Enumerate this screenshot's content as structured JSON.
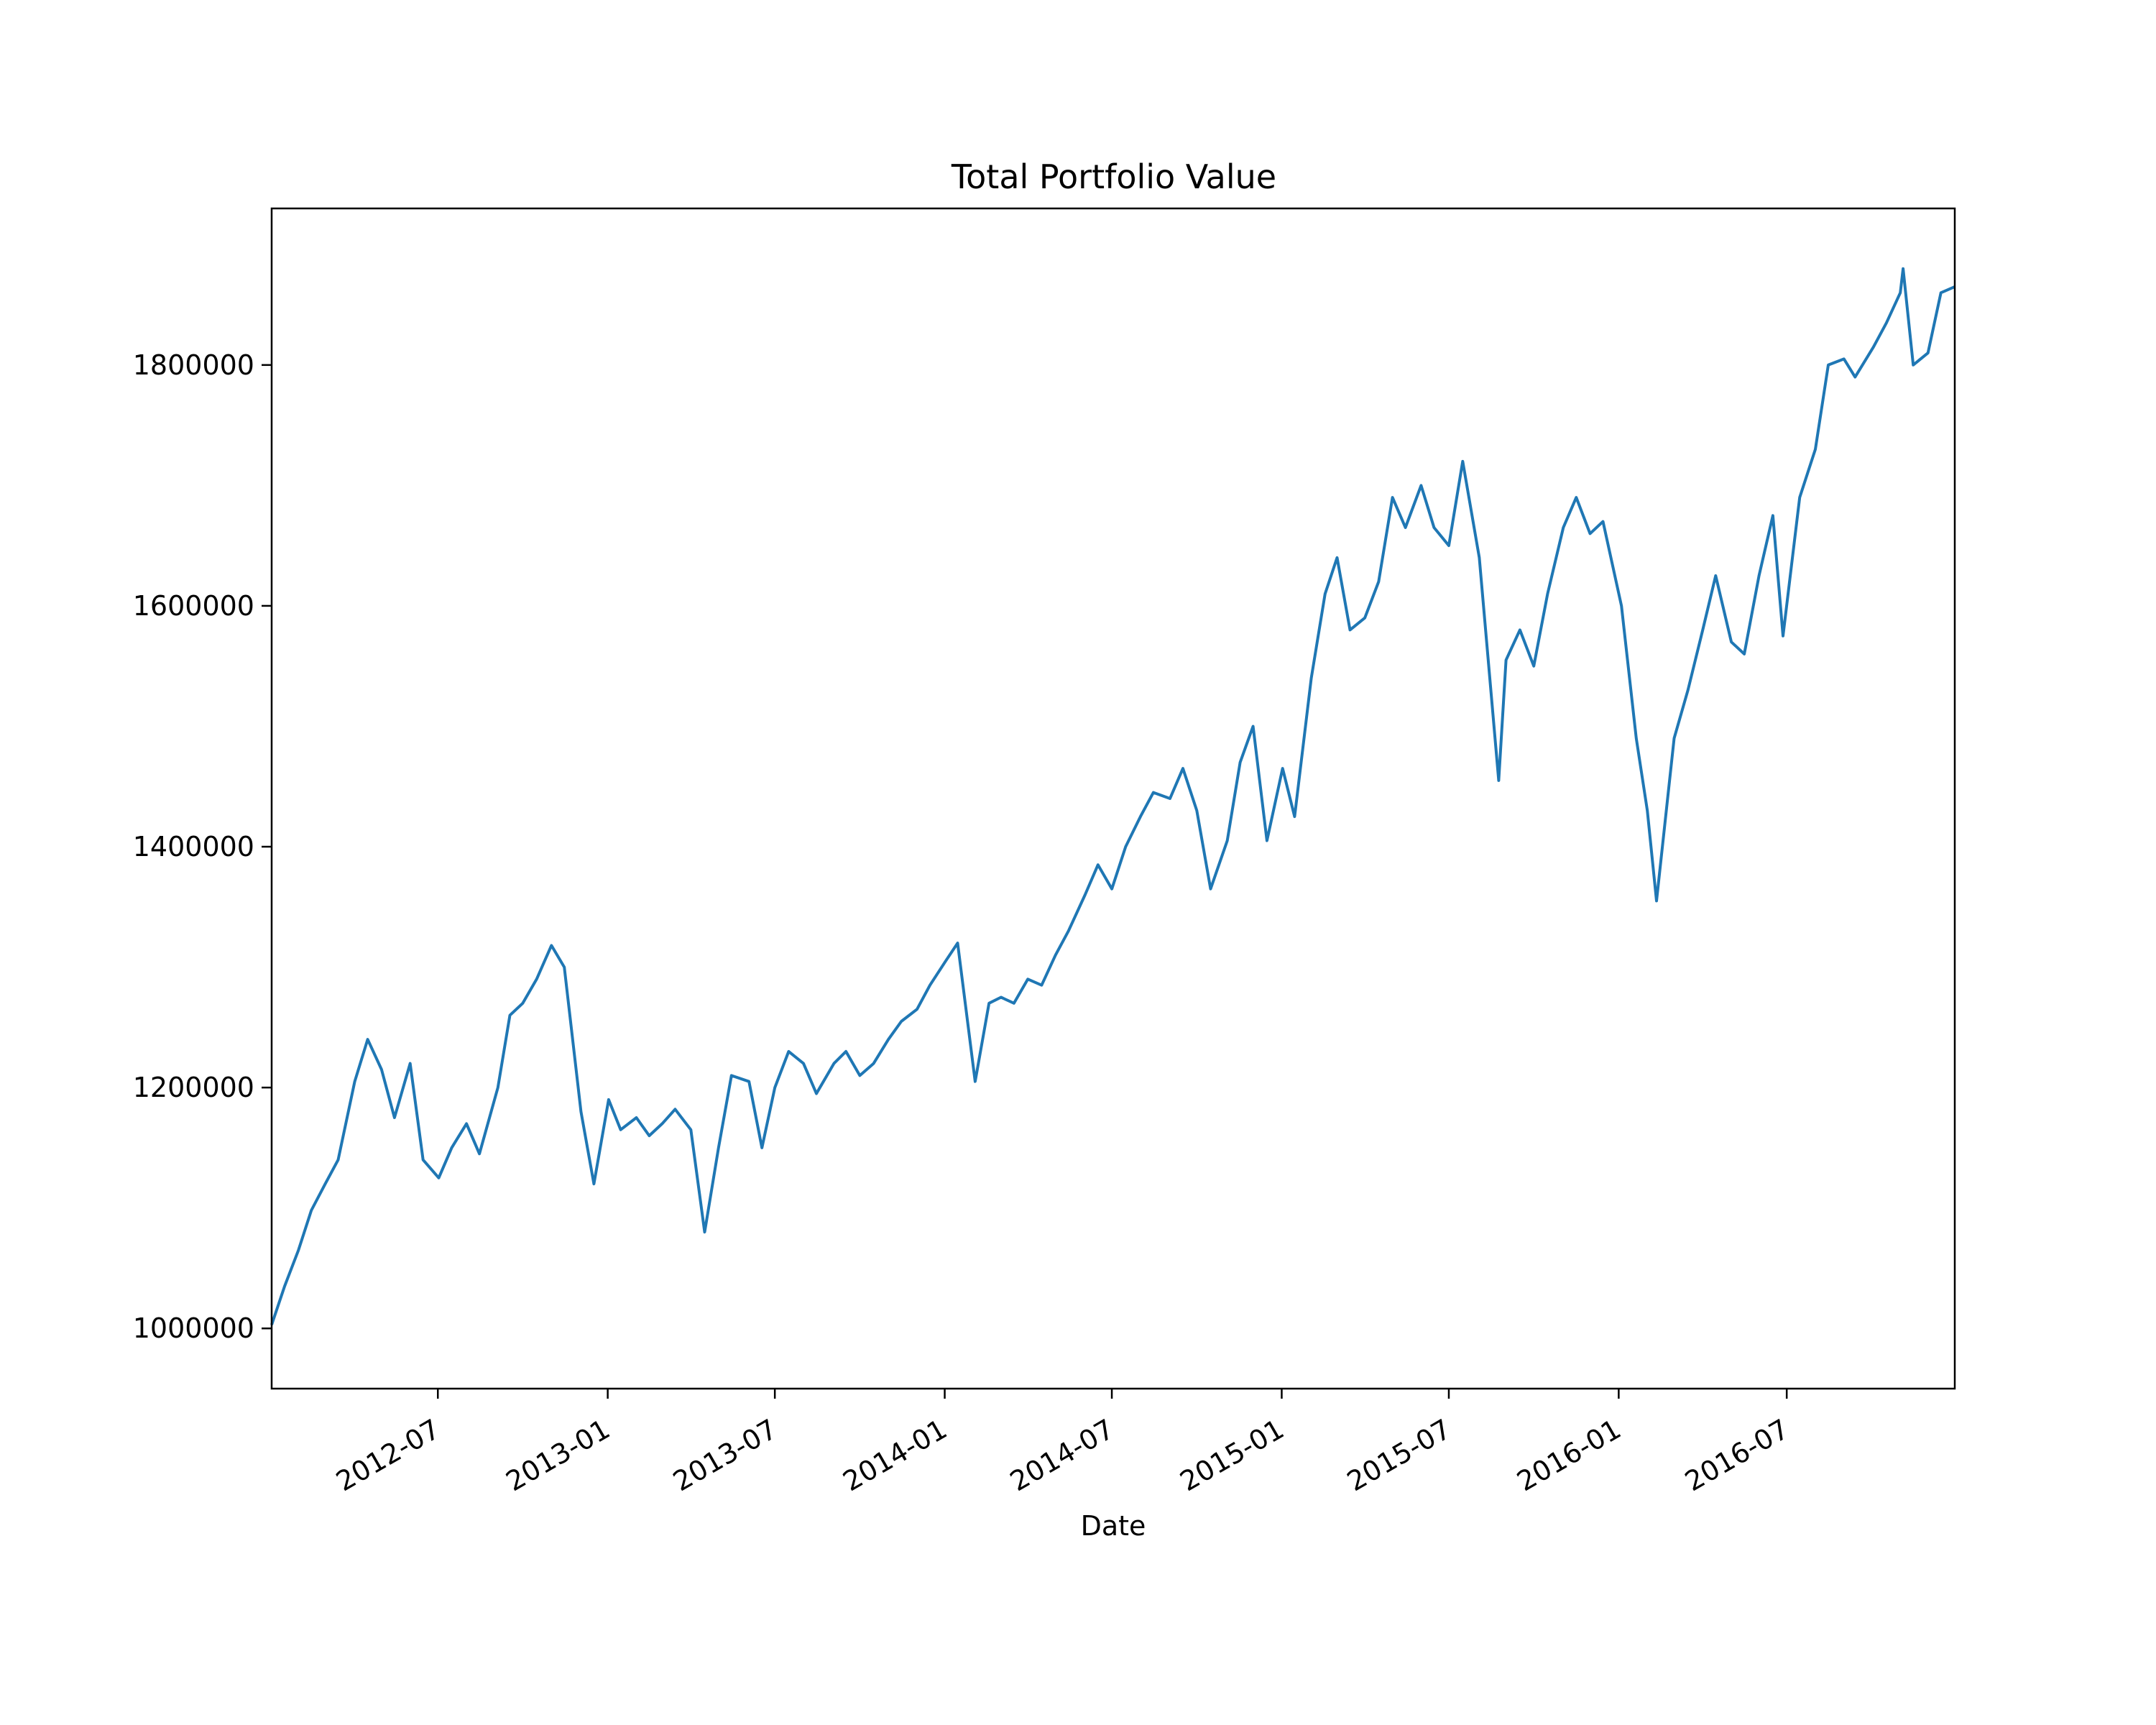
{
  "chart_data": {
    "type": "line",
    "title": "Total Portfolio Value",
    "xlabel": "Date",
    "ylabel": "",
    "x_range": [
      "2012-01-03",
      "2016-12-30"
    ],
    "ylim": [
      950000,
      1930000
    ],
    "grid": false,
    "legend": "none",
    "line_color": "#1f77b4",
    "x_ticks": [
      {
        "date": "2012-07-01",
        "label": "2012-07"
      },
      {
        "date": "2013-01-01",
        "label": "2013-01"
      },
      {
        "date": "2013-07-01",
        "label": "2013-07"
      },
      {
        "date": "2014-01-01",
        "label": "2014-01"
      },
      {
        "date": "2014-07-01",
        "label": "2014-07"
      },
      {
        "date": "2015-01-01",
        "label": "2015-01"
      },
      {
        "date": "2015-07-01",
        "label": "2015-07"
      },
      {
        "date": "2016-01-01",
        "label": "2016-01"
      },
      {
        "date": "2016-07-01",
        "label": "2016-07"
      }
    ],
    "y_ticks": [
      {
        "value": 1000000,
        "label": "1000000"
      },
      {
        "value": 1200000,
        "label": "1200000"
      },
      {
        "value": 1400000,
        "label": "1400000"
      },
      {
        "value": 1600000,
        "label": "1600000"
      },
      {
        "value": 1800000,
        "label": "1800000"
      }
    ],
    "series": [
      {
        "x": [
          "2012-01-03",
          "2012-01-17",
          "2012-02-01",
          "2012-02-15",
          "2012-03-01",
          "2012-03-15",
          "2012-04-02",
          "2012-04-16",
          "2012-05-01",
          "2012-05-15",
          "2012-06-01",
          "2012-06-15",
          "2012-07-02",
          "2012-07-16",
          "2012-08-01",
          "2012-08-15",
          "2012-09-04",
          "2012-09-17",
          "2012-10-01",
          "2012-10-16",
          "2012-11-01",
          "2012-11-15",
          "2012-12-03",
          "2012-12-17",
          "2013-01-02",
          "2013-01-15",
          "2013-02-01",
          "2013-02-15",
          "2013-03-01",
          "2013-03-15",
          "2013-04-01",
          "2013-04-16",
          "2013-05-01",
          "2013-05-15",
          "2013-06-03",
          "2013-06-17",
          "2013-07-01",
          "2013-07-16",
          "2013-08-01",
          "2013-08-15",
          "2013-09-03",
          "2013-09-16",
          "2013-10-01",
          "2013-10-16",
          "2013-11-01",
          "2013-11-15",
          "2013-12-02",
          "2013-12-16",
          "2014-01-02",
          "2014-01-15",
          "2014-02-03",
          "2014-02-18",
          "2014-03-03",
          "2014-03-17",
          "2014-04-01",
          "2014-04-16",
          "2014-05-01",
          "2014-05-15",
          "2014-06-02",
          "2014-06-16",
          "2014-07-01",
          "2014-07-16",
          "2014-08-01",
          "2014-08-15",
          "2014-09-02",
          "2014-09-16",
          "2014-10-01",
          "2014-10-16",
          "2014-11-03",
          "2014-11-17",
          "2014-12-01",
          "2014-12-16",
          "2015-01-02",
          "2015-01-15",
          "2015-02-02",
          "2015-02-17",
          "2015-03-02",
          "2015-03-16",
          "2015-04-01",
          "2015-04-16",
          "2015-05-01",
          "2015-05-15",
          "2015-06-01",
          "2015-06-15",
          "2015-07-01",
          "2015-07-16",
          "2015-08-03",
          "2015-08-24",
          "2015-09-01",
          "2015-09-16",
          "2015-10-01",
          "2015-10-16",
          "2015-11-02",
          "2015-11-16",
          "2015-12-01",
          "2015-12-15",
          "2016-01-04",
          "2016-01-20",
          "2016-02-01",
          "2016-02-11",
          "2016-03-01",
          "2016-03-16",
          "2016-04-01",
          "2016-04-15",
          "2016-05-02",
          "2016-05-16",
          "2016-06-01",
          "2016-06-16",
          "2016-06-27",
          "2016-07-15",
          "2016-08-01",
          "2016-08-15",
          "2016-09-01",
          "2016-09-13",
          "2016-10-03",
          "2016-10-17",
          "2016-11-01",
          "2016-11-04",
          "2016-11-15",
          "2016-12-01",
          "2016-12-15",
          "2016-12-30"
        ],
        "y": [
          1003000,
          1035000,
          1065000,
          1098000,
          1120000,
          1140000,
          1205000,
          1240000,
          1215000,
          1175000,
          1220000,
          1140000,
          1125000,
          1150000,
          1170000,
          1145000,
          1200000,
          1260000,
          1270000,
          1290000,
          1318000,
          1300000,
          1180000,
          1120000,
          1190000,
          1165000,
          1175000,
          1160000,
          1170000,
          1182000,
          1165000,
          1080000,
          1150000,
          1210000,
          1205000,
          1150000,
          1200000,
          1230000,
          1220000,
          1195000,
          1220000,
          1230000,
          1210000,
          1220000,
          1240000,
          1255000,
          1265000,
          1285000,
          1305000,
          1320000,
          1205000,
          1270000,
          1275000,
          1270000,
          1290000,
          1285000,
          1310000,
          1330000,
          1360000,
          1385000,
          1365000,
          1400000,
          1425000,
          1445000,
          1440000,
          1465000,
          1430000,
          1365000,
          1405000,
          1470000,
          1500000,
          1405000,
          1465000,
          1425000,
          1540000,
          1610000,
          1640000,
          1580000,
          1590000,
          1620000,
          1690000,
          1665000,
          1700000,
          1665000,
          1650000,
          1720000,
          1640000,
          1455000,
          1555000,
          1580000,
          1550000,
          1610000,
          1665000,
          1690000,
          1660000,
          1670000,
          1600000,
          1490000,
          1430000,
          1355000,
          1490000,
          1530000,
          1580000,
          1625000,
          1570000,
          1560000,
          1625000,
          1675000,
          1575000,
          1690000,
          1730000,
          1800000,
          1805000,
          1790000,
          1815000,
          1835000,
          1860000,
          1880000,
          1800000,
          1810000,
          1860000,
          1865000
        ],
        "color": "#1f77b4"
      }
    ]
  }
}
